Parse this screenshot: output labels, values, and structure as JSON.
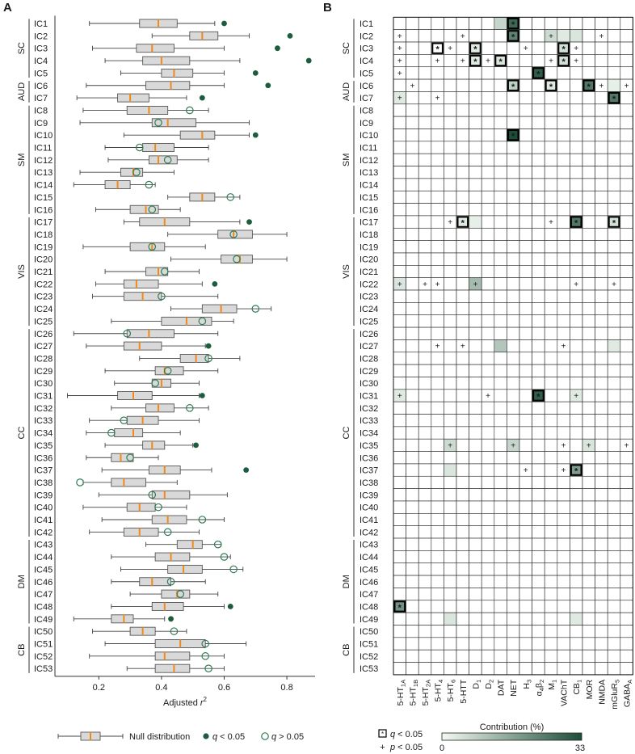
{
  "chart_data": [
    {
      "type": "boxplot",
      "panel_label": "A",
      "xlabel_base": "Adjusted ",
      "xlabel_var": "r",
      "xlabel_sup": "2",
      "x_ticks": [
        0.2,
        0.4,
        0.6,
        0.8
      ],
      "xlim": [
        0.06,
        0.89
      ],
      "components": [
        "IC1",
        "IC2",
        "IC3",
        "IC4",
        "IC5",
        "IC6",
        "IC7",
        "IC8",
        "IC9",
        "IC10",
        "IC11",
        "IC12",
        "IC13",
        "IC14",
        "IC15",
        "IC16",
        "IC17",
        "IC18",
        "IC19",
        "IC20",
        "IC21",
        "IC22",
        "IC23",
        "IC24",
        "IC25",
        "IC26",
        "IC27",
        "IC28",
        "IC29",
        "IC30",
        "IC31",
        "IC32",
        "IC33",
        "IC34",
        "IC35",
        "IC36",
        "IC37",
        "IC38",
        "IC39",
        "IC40",
        "IC41",
        "IC42",
        "IC43",
        "IC44",
        "IC45",
        "IC46",
        "IC47",
        "IC48",
        "IC49",
        "IC50",
        "IC51",
        "IC52",
        "IC53"
      ],
      "groups": [
        {
          "label": "SC",
          "start": 0,
          "end": 4
        },
        {
          "label": "AUD",
          "start": 5,
          "end": 6
        },
        {
          "label": "SM",
          "start": 7,
          "end": 15
        },
        {
          "label": "VIS",
          "start": 16,
          "end": 24
        },
        {
          "label": "CC",
          "start": 25,
          "end": 41
        },
        {
          "label": "DM",
          "start": 42,
          "end": 48
        },
        {
          "label": "CB",
          "start": 49,
          "end": 52
        }
      ],
      "null_distribution": [
        [
          0.17,
          0.33,
          0.39,
          0.45,
          0.57
        ],
        [
          0.37,
          0.49,
          0.53,
          0.58,
          0.68
        ],
        [
          0.18,
          0.32,
          0.37,
          0.44,
          0.6
        ],
        [
          0.22,
          0.34,
          0.4,
          0.49,
          0.65
        ],
        [
          0.27,
          0.4,
          0.44,
          0.5,
          0.6
        ],
        [
          0.16,
          0.35,
          0.43,
          0.49,
          0.6
        ],
        [
          0.13,
          0.26,
          0.3,
          0.36,
          0.48
        ],
        [
          0.15,
          0.29,
          0.36,
          0.42,
          0.55
        ],
        [
          0.14,
          0.37,
          0.42,
          0.51,
          0.68
        ],
        [
          0.28,
          0.46,
          0.53,
          0.57,
          0.68
        ],
        [
          0.22,
          0.34,
          0.38,
          0.44,
          0.55
        ],
        [
          0.23,
          0.36,
          0.39,
          0.45,
          0.55
        ],
        [
          0.14,
          0.27,
          0.31,
          0.34,
          0.44
        ],
        [
          0.12,
          0.22,
          0.26,
          0.3,
          0.38
        ],
        [
          0.42,
          0.49,
          0.53,
          0.57,
          0.65
        ],
        [
          0.19,
          0.3,
          0.35,
          0.39,
          0.46
        ],
        [
          0.28,
          0.33,
          0.41,
          0.49,
          0.65
        ],
        [
          0.42,
          0.58,
          0.63,
          0.69,
          0.8
        ],
        [
          0.15,
          0.3,
          0.37,
          0.41,
          0.54
        ],
        [
          0.43,
          0.59,
          0.65,
          0.69,
          0.8
        ],
        [
          0.22,
          0.35,
          0.39,
          0.42,
          0.52
        ],
        [
          0.19,
          0.28,
          0.32,
          0.39,
          0.53
        ],
        [
          0.18,
          0.28,
          0.34,
          0.4,
          0.58
        ],
        [
          0.43,
          0.53,
          0.59,
          0.64,
          0.75
        ],
        [
          0.24,
          0.4,
          0.48,
          0.56,
          0.63
        ],
        [
          0.12,
          0.29,
          0.36,
          0.44,
          0.58
        ],
        [
          0.16,
          0.28,
          0.33,
          0.4,
          0.54
        ],
        [
          0.33,
          0.46,
          0.51,
          0.55,
          0.65
        ],
        [
          0.22,
          0.38,
          0.41,
          0.47,
          0.58
        ],
        [
          0.25,
          0.37,
          0.4,
          0.43,
          0.52
        ],
        [
          0.1,
          0.26,
          0.31,
          0.37,
          0.52
        ],
        [
          0.24,
          0.35,
          0.39,
          0.44,
          0.55
        ],
        [
          0.17,
          0.29,
          0.34,
          0.39,
          0.52
        ],
        [
          0.16,
          0.25,
          0.31,
          0.34,
          0.46
        ],
        [
          0.22,
          0.34,
          0.37,
          0.41,
          0.5
        ],
        [
          0.16,
          0.24,
          0.27,
          0.31,
          0.39
        ],
        [
          0.21,
          0.36,
          0.41,
          0.46,
          0.56
        ],
        [
          0.15,
          0.24,
          0.28,
          0.35,
          0.45
        ],
        [
          0.2,
          0.37,
          0.41,
          0.49,
          0.61
        ],
        [
          0.15,
          0.29,
          0.33,
          0.38,
          0.48
        ],
        [
          0.21,
          0.37,
          0.42,
          0.48,
          0.6
        ],
        [
          0.17,
          0.28,
          0.33,
          0.39,
          0.52
        ],
        [
          0.35,
          0.45,
          0.5,
          0.53,
          0.59
        ],
        [
          0.24,
          0.38,
          0.43,
          0.49,
          0.62
        ],
        [
          0.27,
          0.42,
          0.47,
          0.53,
          0.66
        ],
        [
          0.24,
          0.33,
          0.37,
          0.43,
          0.54
        ],
        [
          0.3,
          0.4,
          0.45,
          0.49,
          0.58
        ],
        [
          0.24,
          0.37,
          0.41,
          0.47,
          0.6
        ],
        [
          0.12,
          0.24,
          0.28,
          0.31,
          0.41
        ],
        [
          0.18,
          0.3,
          0.34,
          0.38,
          0.48
        ],
        [
          0.22,
          0.38,
          0.46,
          0.54,
          0.67
        ],
        [
          0.17,
          0.38,
          0.41,
          0.49,
          0.6
        ],
        [
          0.29,
          0.38,
          0.44,
          0.49,
          0.6
        ]
      ],
      "observed_r2": [
        0.6,
        0.81,
        0.77,
        0.87,
        0.7,
        0.74,
        0.53,
        0.49,
        0.39,
        0.7,
        0.33,
        0.42,
        0.32,
        0.36,
        0.62,
        0.37,
        0.68,
        0.63,
        0.37,
        0.64,
        0.41,
        0.57,
        0.4,
        0.7,
        0.53,
        0.29,
        0.55,
        0.55,
        0.42,
        0.38,
        0.53,
        0.49,
        0.28,
        0.24,
        0.51,
        0.3,
        0.67,
        0.14,
        0.37,
        0.39,
        0.53,
        0.42,
        0.58,
        0.6,
        0.63,
        0.43,
        0.46,
        0.62,
        0.43,
        0.44,
        0.54,
        0.54,
        0.55
      ],
      "observed_sig": [
        1,
        1,
        1,
        1,
        1,
        1,
        1,
        0,
        0,
        1,
        0,
        0,
        0,
        0,
        0,
        0,
        1,
        0,
        0,
        0,
        0,
        1,
        0,
        0,
        0,
        0,
        1,
        0,
        0,
        0,
        1,
        0,
        0,
        0,
        1,
        0,
        1,
        0,
        0,
        0,
        0,
        0,
        0,
        0,
        0,
        0,
        0,
        1,
        1,
        0,
        0,
        0,
        0
      ],
      "legend": {
        "null_label": "Null distribution",
        "sig_label": " < 0.05",
        "ns_label": " > 0.05",
        "q_symbol": "q"
      }
    },
    {
      "type": "heatmap",
      "panel_label": "B",
      "columns": [
        {
          "base": "5-HT",
          "sub": "1A"
        },
        {
          "base": "5-HT",
          "sub": "1B"
        },
        {
          "base": "5-HT",
          "sub": "2A"
        },
        {
          "base": "5-HT",
          "sub": "4"
        },
        {
          "base": "5-HT",
          "sub": "6"
        },
        {
          "base": "5-HTT",
          "sub": ""
        },
        {
          "base": "D",
          "sub": "1"
        },
        {
          "base": "D",
          "sub": "2"
        },
        {
          "base": "DAT",
          "sub": ""
        },
        {
          "base": "NET",
          "sub": ""
        },
        {
          "base": "H",
          "sub": "3"
        },
        {
          "base": "α",
          "sub": "4",
          "base2": "β",
          "sub2": "2"
        },
        {
          "base": "M",
          "sub": "1"
        },
        {
          "base": "VAChT",
          "sub": ""
        },
        {
          "base": "CB",
          "sub": "1"
        },
        {
          "base": "MOR",
          "sub": ""
        },
        {
          "base": "NMDA",
          "sub": ""
        },
        {
          "base": "mGluR",
          "sub": "5"
        },
        {
          "base": "GABA",
          "sub": "A"
        }
      ],
      "colorbar": {
        "label": "Contribution (%)",
        "min_label": "0",
        "max_label": "33",
        "min": 0,
        "max": 33,
        "color_low": "#f3faf3",
        "color_high": "#1e4d3a"
      },
      "legend": {
        "star_text": " < 0.05",
        "star_sym": "q",
        "plus_text": " < 0.05",
        "plus_sym": "p",
        "star_glyph": "*",
        "plus_glyph": "+"
      },
      "rows": {
        "IC1": {
          "values": {
            "8": 7,
            "9": 28
          },
          "stars": [
            9
          ],
          "plus": []
        },
        "IC2": {
          "values": {
            "9": 23,
            "12": 6,
            "13": 3,
            "14": 4
          },
          "stars": [
            9
          ],
          "plus": [
            0,
            5,
            12,
            16
          ]
        },
        "IC3": {
          "values": {
            "6": 3,
            "13": 5
          },
          "stars": [
            3,
            6,
            13
          ],
          "plus": [
            0,
            4,
            10,
            14
          ]
        },
        "IC4": {
          "values": {
            "6": 3,
            "8": 4,
            "13": 5
          },
          "stars": [
            6,
            8,
            13
          ],
          "plus": [
            0,
            3,
            5,
            7,
            12,
            14
          ]
        },
        "IC5": {
          "values": {
            "11": 30
          },
          "stars": [
            11
          ],
          "plus": [
            0
          ]
        },
        "IC6": {
          "values": {
            "9": 8,
            "12": 3,
            "15": 25,
            "17": 2
          },
          "stars": [
            9,
            12,
            15
          ],
          "plus": [
            1,
            16,
            18
          ]
        },
        "IC7": {
          "values": {
            "0": 3,
            "17": 25
          },
          "stars": [
            17
          ],
          "plus": [
            0,
            3
          ]
        },
        "IC10": {
          "values": {
            "9": 33
          },
          "stars": [
            9
          ],
          "plus": []
        },
        "IC17": {
          "values": {
            "5": 3,
            "14": 25,
            "17": 5,
            "6": 2
          },
          "stars": [
            5,
            14,
            17
          ],
          "plus": [
            4,
            12
          ]
        },
        "IC22": {
          "values": {
            "0": 4,
            "6": 12
          },
          "stars": [],
          "plus": [
            0,
            2,
            3,
            6,
            14,
            17
          ]
        },
        "IC27": {
          "values": {
            "8": 10,
            "17": 3
          },
          "stars": [],
          "plus": [
            3,
            5,
            13
          ]
        },
        "IC31": {
          "values": {
            "0": 3,
            "11": 30,
            "14": 3
          },
          "stars": [
            11
          ],
          "plus": [
            0,
            7,
            14
          ]
        },
        "IC35": {
          "values": {
            "4": 6,
            "9": 7,
            "15": 4
          },
          "stars": [],
          "plus": [
            4,
            9,
            13,
            15,
            18
          ]
        },
        "IC37": {
          "values": {
            "4": 4,
            "14": 18
          },
          "stars": [
            14
          ],
          "plus": [
            10,
            13
          ]
        },
        "IC48": {
          "values": {
            "0": 20
          },
          "stars": [
            0
          ],
          "plus": []
        },
        "IC49": {
          "values": {
            "4": 4,
            "14": 3
          },
          "stars": [],
          "plus": []
        }
      }
    }
  ]
}
